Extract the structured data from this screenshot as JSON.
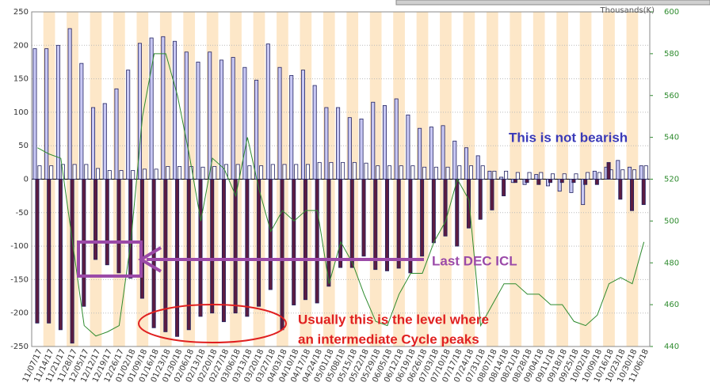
{
  "chart_data": {
    "type": "bar",
    "y2_unit_label": "Thousands(K)",
    "categories": [
      "11/07/17",
      "11/14/17",
      "11/21/17",
      "11/28/17",
      "12/05/17",
      "12/12/17",
      "12/19/17",
      "12/26/17",
      "01/02/18",
      "01/09/18",
      "01/16/18",
      "01/23/18",
      "01/30/18",
      "02/06/18",
      "02/13/18",
      "02/20/18",
      "02/27/18",
      "03/06/18",
      "03/13/18",
      "03/20/18",
      "03/27/18",
      "04/03/18",
      "04/10/18",
      "04/17/18",
      "04/24/18",
      "05/01/18",
      "05/08/18",
      "05/15/18",
      "05/22/18",
      "05/29/18",
      "06/05/18",
      "06/12/18",
      "06/19/18",
      "06/26/18",
      "07/03/18",
      "07/10/18",
      "07/17/18",
      "07/24/18",
      "07/31/18",
      "08/07/18",
      "08/14/18",
      "08/21/18",
      "08/28/18",
      "09/04/18",
      "09/11/18",
      "09/18/18",
      "09/25/18",
      "10/02/18",
      "10/09/18",
      "10/16/18",
      "10/23/18",
      "10/30/18",
      "11/06/18"
    ],
    "series": [
      {
        "type": "bar",
        "color": "#c8c8f4",
        "values": [
          195,
          195,
          200,
          225,
          173,
          107,
          113,
          135,
          163,
          203,
          211,
          213,
          206,
          190,
          175,
          190,
          178,
          182,
          167,
          148,
          202,
          167,
          155,
          163,
          140,
          107,
          107,
          92,
          90,
          115,
          110,
          120,
          96,
          76,
          78,
          80,
          57,
          47,
          35,
          12,
          3,
          -5,
          -8,
          7,
          -10,
          -18,
          -20,
          -38,
          12,
          18,
          28,
          18,
          20
        ]
      },
      {
        "type": "bar",
        "color": "#ffffff",
        "values": [
          20,
          20,
          22,
          22,
          22,
          16,
          13,
          13,
          13,
          15,
          15,
          19,
          19,
          19,
          18,
          19,
          22,
          22,
          20,
          20,
          22,
          22,
          22,
          22,
          25,
          25,
          25,
          25,
          24,
          20,
          20,
          20,
          20,
          18,
          18,
          18,
          20,
          20,
          20,
          12,
          12,
          10,
          10,
          10,
          8,
          8,
          8,
          10,
          10,
          14,
          14,
          14,
          20
        ]
      },
      {
        "type": "bar",
        "color": "#5c1c40",
        "values": [
          -215,
          -215,
          -225,
          -245,
          -190,
          -120,
          -128,
          -140,
          -148,
          -178,
          -222,
          -228,
          -235,
          -225,
          -205,
          -200,
          -213,
          -200,
          -205,
          -190,
          -165,
          -225,
          -188,
          -180,
          -185,
          -160,
          -132,
          -132,
          -115,
          -135,
          -137,
          -133,
          -140,
          -115,
          -95,
          -85,
          -100,
          -73,
          -60,
          -46,
          -25,
          -5,
          -5,
          -8,
          -5,
          -5,
          -5,
          -8,
          -8,
          25,
          -30,
          -47,
          -38
        ]
      },
      {
        "type": "line",
        "axis": "y2",
        "color": "#2e8b2e",
        "values": [
          535,
          532,
          530,
          490,
          450,
          445,
          447,
          450,
          490,
          550,
          580,
          580,
          560,
          532,
          500,
          530,
          525,
          512,
          540,
          515,
          495,
          505,
          500,
          505,
          505,
          470,
          490,
          480,
          465,
          452,
          450,
          465,
          475,
          475,
          490,
          500,
          520,
          510,
          450,
          460,
          470,
          470,
          465,
          465,
          460,
          460,
          452,
          450,
          455,
          470,
          473,
          470,
          490
        ]
      }
    ],
    "ylim": [
      -250,
      250
    ],
    "yticks": [
      -250,
      -200,
      -150,
      -100,
      -50,
      0,
      50,
      100,
      150,
      200,
      250
    ],
    "y2lim": [
      440,
      600
    ],
    "y2ticks": [
      440,
      460,
      480,
      500,
      520,
      540,
      560,
      580,
      600
    ],
    "annotations": [
      "This is not bearish",
      "Last  DEC ICL",
      "Usually this is the level where",
      "an intermediate Cycle peaks"
    ]
  }
}
